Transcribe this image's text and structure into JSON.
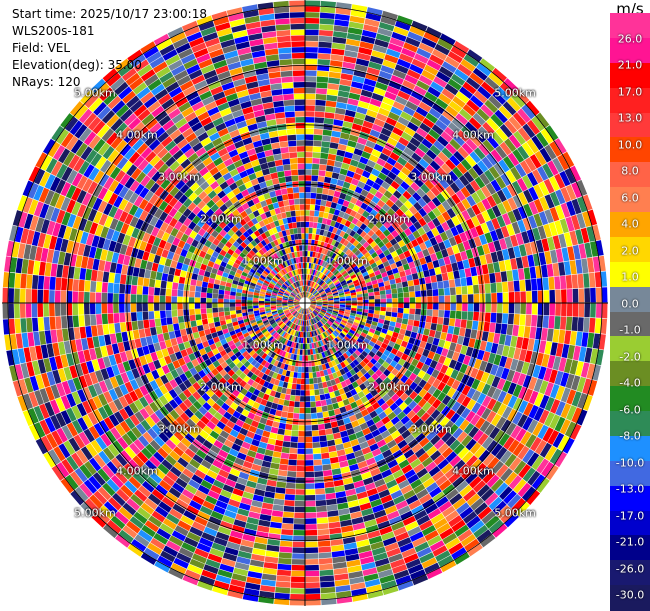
{
  "header": {
    "start_time": "Start time: 2025/10/17 23:00:18",
    "instrument": "WLS200s-181",
    "field": "Field: VEL",
    "elevation": "Elevation(deg): 35.00",
    "nrays": "NRays: 120"
  },
  "chart_data": {
    "type": "heatmap",
    "projection": "polar-ppi",
    "nrays": 120,
    "ring_labels": [
      "1.00km",
      "2.00km",
      "3.00km",
      "4.00km",
      "5.00km"
    ],
    "colorbar": {
      "unit": "m/s",
      "ticks": [
        "26.0",
        "21.0",
        "17.0",
        "13.0",
        "10.0",
        "8.0",
        "6.0",
        "4.0",
        "2.0",
        "1.0",
        "0.0",
        "-1.0",
        "-2.0",
        "-4.0",
        "-6.0",
        "-8.0",
        "-10.0",
        "-13.0",
        "-17.0",
        "-21.0",
        "-26.0",
        "-30.0"
      ],
      "colors": [
        "#ff3399",
        "#ff1493",
        "#ff0000",
        "#ff2020",
        "#ff3a3a",
        "#ff4500",
        "#ff6347",
        "#ff7f50",
        "#ffa500",
        "#ffd700",
        "#ffff00",
        "#778899",
        "#696969",
        "#9acd32",
        "#6b8e23",
        "#228b22",
        "#2e8b57",
        "#1e90ff",
        "#4169e1",
        "#0000ff",
        "#0000cd",
        "#00008b",
        "#191970",
        "#1a1a5e"
      ]
    }
  }
}
